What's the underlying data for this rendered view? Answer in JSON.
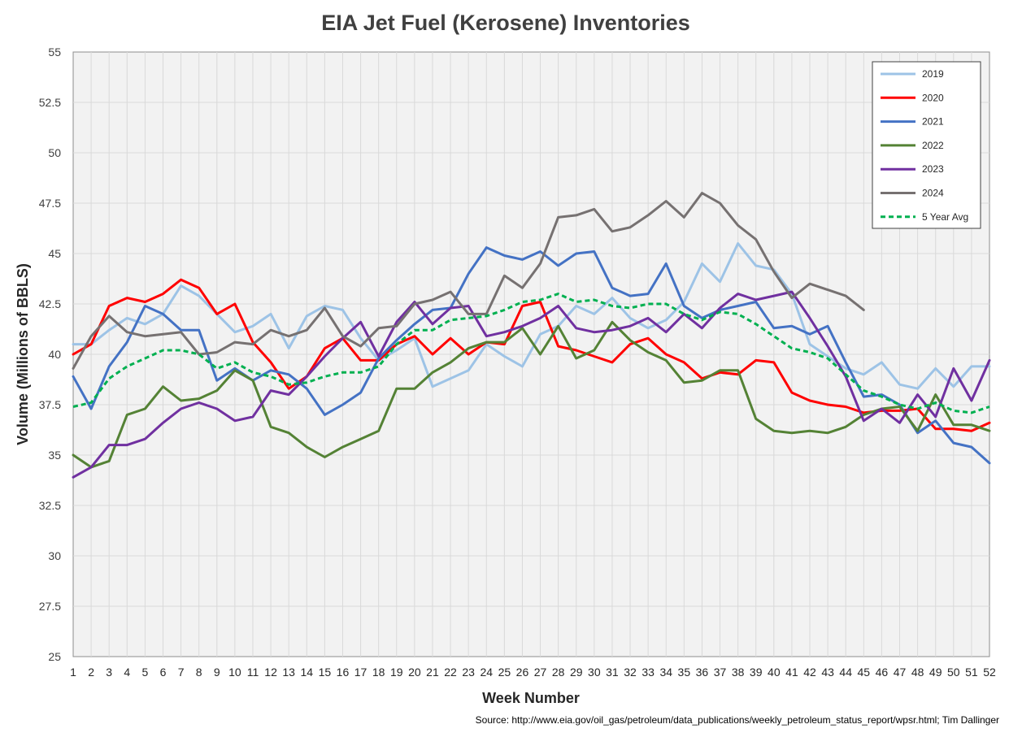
{
  "chart_data": {
    "type": "line",
    "title": "EIA Jet Fuel (Kerosene) Inventories",
    "xlabel": "Week Number",
    "ylabel": "Volume (Millions of BBLS)",
    "source": "Source: http://www.eia.gov/oil_gas/petroleum/data_publications/weekly_petroleum_status_report/wpsr.html; Tim Dallinger",
    "ylim": [
      25,
      55
    ],
    "xlim": [
      1,
      52
    ],
    "yticks": [
      25,
      27.5,
      30,
      32.5,
      35,
      37.5,
      40,
      42.5,
      45,
      47.5,
      50,
      52.5,
      55
    ],
    "ytick_labels": [
      "25",
      "27.5",
      "30",
      "32.5",
      "35",
      "37.5",
      "40",
      "42.5",
      "45",
      "47.5",
      "50",
      "52.5",
      "55"
    ],
    "grid": true,
    "legend_position": "top-right",
    "x": [
      1,
      2,
      3,
      4,
      5,
      6,
      7,
      8,
      9,
      10,
      11,
      12,
      13,
      14,
      15,
      16,
      17,
      18,
      19,
      20,
      21,
      22,
      23,
      24,
      25,
      26,
      27,
      28,
      29,
      30,
      31,
      32,
      33,
      34,
      35,
      36,
      37,
      38,
      39,
      40,
      41,
      42,
      43,
      44,
      45,
      46,
      47,
      48,
      49,
      50,
      51,
      52
    ],
    "xtick_labels": [
      "1",
      "2",
      "3",
      "4",
      "5",
      "6",
      "7",
      "8",
      "9",
      "10",
      "11",
      "12",
      "13",
      "14",
      "15",
      "16",
      "17",
      "18",
      "19",
      "20",
      "21",
      "22",
      "23",
      "24",
      "25",
      "26",
      "27",
      "28",
      "29",
      "30",
      "31",
      "32",
      "33",
      "34",
      "35",
      "36",
      "37",
      "38",
      "39",
      "40",
      "41",
      "42",
      "43",
      "44",
      "45",
      "46",
      "47",
      "48",
      "49",
      "50",
      "51",
      "52"
    ],
    "series": [
      {
        "name": "2019",
        "color": "#9DC3E6",
        "style": "solid",
        "values": [
          40.5,
          40.5,
          41.2,
          41.8,
          41.5,
          42.0,
          43.4,
          42.9,
          42.0,
          41.1,
          41.4,
          42.0,
          40.3,
          41.9,
          42.4,
          42.2,
          40.8,
          39.7,
          40.2,
          40.8,
          38.4,
          38.8,
          39.2,
          40.5,
          39.9,
          39.4,
          41.0,
          41.4,
          42.4,
          42.0,
          42.8,
          41.8,
          41.3,
          41.7,
          42.6,
          44.5,
          43.6,
          45.5,
          44.4,
          44.2,
          43.0,
          40.5,
          39.9,
          39.3,
          39.0,
          39.6,
          38.5,
          38.3,
          39.3,
          38.4,
          39.4,
          39.4
        ]
      },
      {
        "name": "2020",
        "color": "#FF0000",
        "style": "solid",
        "values": [
          40.0,
          40.5,
          42.4,
          42.8,
          42.6,
          43.0,
          43.7,
          43.3,
          42.0,
          42.5,
          40.6,
          39.6,
          38.3,
          38.9,
          40.3,
          40.8,
          39.7,
          39.7,
          40.5,
          40.9,
          40.0,
          40.8,
          40.0,
          40.6,
          40.5,
          42.4,
          42.6,
          40.4,
          40.2,
          39.9,
          39.6,
          40.5,
          40.8,
          40.0,
          39.6,
          38.8,
          39.1,
          39.0,
          39.7,
          39.6,
          38.1,
          37.7,
          37.5,
          37.4,
          37.1,
          37.2,
          37.2,
          37.3,
          36.3,
          36.3,
          36.2,
          36.6
        ]
      },
      {
        "name": "2021",
        "color": "#4472C4",
        "style": "solid",
        "values": [
          38.9,
          37.3,
          39.4,
          40.6,
          42.4,
          42.0,
          41.2,
          41.2,
          38.7,
          39.3,
          38.7,
          39.2,
          39.0,
          38.3,
          37.0,
          37.5,
          38.1,
          39.8,
          40.7,
          41.5,
          42.2,
          42.3,
          44.0,
          45.3,
          44.9,
          44.7,
          45.1,
          44.4,
          45.0,
          45.1,
          43.3,
          42.9,
          43.0,
          44.5,
          42.4,
          41.8,
          42.2,
          42.4,
          42.6,
          41.3,
          41.4,
          41.0,
          41.4,
          39.6,
          37.9,
          38.0,
          37.5,
          36.1,
          36.7,
          35.6,
          35.4,
          34.6
        ]
      },
      {
        "name": "2022",
        "color": "#548235",
        "style": "solid",
        "values": [
          35.0,
          34.4,
          34.7,
          37.0,
          37.3,
          38.4,
          37.7,
          37.8,
          38.2,
          39.2,
          38.7,
          36.4,
          36.1,
          35.4,
          34.9,
          35.4,
          35.8,
          36.2,
          38.3,
          38.3,
          39.1,
          39.6,
          40.3,
          40.6,
          40.6,
          41.3,
          40.0,
          41.4,
          39.8,
          40.2,
          41.6,
          40.7,
          40.1,
          39.7,
          38.6,
          38.7,
          39.2,
          39.2,
          36.8,
          36.2,
          36.1,
          36.2,
          36.1,
          36.4,
          37.0,
          37.3,
          37.4,
          36.2,
          38.0,
          36.5,
          36.5,
          36.2
        ]
      },
      {
        "name": "2023",
        "color": "#7030A0",
        "style": "solid",
        "values": [
          33.9,
          34.4,
          35.5,
          35.5,
          35.8,
          36.6,
          37.3,
          37.6,
          37.3,
          36.7,
          36.9,
          38.2,
          38.0,
          38.9,
          39.9,
          40.8,
          41.6,
          39.9,
          41.6,
          42.6,
          41.5,
          42.3,
          42.4,
          40.9,
          41.1,
          41.4,
          41.8,
          42.4,
          41.3,
          41.1,
          41.2,
          41.4,
          41.8,
          41.1,
          42.0,
          41.3,
          42.3,
          43.0,
          42.7,
          42.9,
          43.1,
          41.8,
          40.4,
          38.9,
          36.7,
          37.3,
          36.6,
          38.0,
          36.9,
          39.3,
          37.7,
          39.7
        ]
      },
      {
        "name": "2024",
        "color": "#767171",
        "style": "solid",
        "values": [
          39.3,
          40.9,
          41.9,
          41.1,
          40.9,
          41.0,
          41.1,
          40.0,
          40.1,
          40.6,
          40.5,
          41.2,
          40.9,
          41.2,
          42.3,
          40.9,
          40.4,
          41.3,
          41.4,
          42.5,
          42.7,
          43.1,
          42.0,
          42.0,
          43.9,
          43.3,
          44.5,
          46.8,
          46.9,
          47.2,
          46.1,
          46.3,
          46.9,
          47.6,
          46.8,
          48.0,
          47.5,
          46.4,
          45.7,
          44.1,
          42.8,
          43.5,
          43.2,
          42.9,
          42.2,
          null,
          null,
          null,
          null,
          null,
          null,
          null
        ]
      },
      {
        "name": "5 Year Avg",
        "color": "#00B050",
        "style": "dashed",
        "values": [
          37.4,
          37.6,
          38.8,
          39.4,
          39.8,
          40.2,
          40.2,
          40.0,
          39.3,
          39.6,
          39.1,
          38.9,
          38.5,
          38.6,
          38.9,
          39.1,
          39.1,
          39.4,
          40.5,
          41.2,
          41.2,
          41.7,
          41.8,
          41.9,
          42.2,
          42.6,
          42.7,
          43.0,
          42.6,
          42.7,
          42.4,
          42.3,
          42.5,
          42.5,
          42.0,
          41.7,
          42.1,
          42.0,
          41.5,
          40.9,
          40.3,
          40.1,
          39.8,
          39.0,
          38.2,
          37.9,
          37.5,
          37.3,
          37.6,
          37.2,
          37.1,
          37.4
        ]
      }
    ]
  }
}
